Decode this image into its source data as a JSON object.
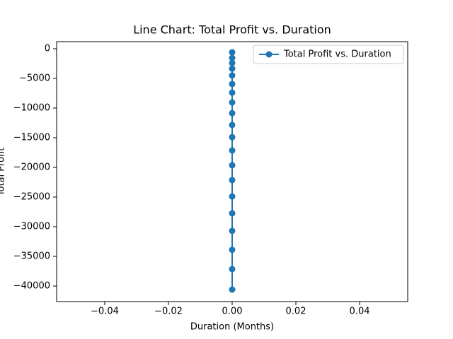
{
  "chart_data": {
    "type": "line",
    "title": "Line Chart: Total Profit vs. Duration",
    "x_label": "Duration (Months)",
    "y_label": "Total Profit",
    "x": [
      0,
      0,
      0,
      0,
      0,
      0,
      0,
      0,
      0,
      0,
      0,
      0,
      0,
      0,
      0,
      0,
      0,
      0,
      0,
      0
    ],
    "series": [
      {
        "name": "Total Profit vs. Duration",
        "color": "#1f77b4",
        "values": [
          -600,
          -1550,
          -2400,
          -3350,
          -4500,
          -5950,
          -7400,
          -9050,
          -10850,
          -12850,
          -14900,
          -17150,
          -19650,
          -22150,
          -24900,
          -27750,
          -30700,
          -33900,
          -37150,
          -40600
        ]
      }
    ],
    "xlim": [
      -0.0551,
      0.0551
    ],
    "xticks": [
      {
        "value": -0.04,
        "label": "−0.04"
      },
      {
        "value": -0.02,
        "label": "−0.02"
      },
      {
        "value": 0,
        "label": "0.00"
      },
      {
        "value": 0.02,
        "label": "0.02"
      },
      {
        "value": 0.04,
        "label": "0.04"
      }
    ],
    "ylim": [
      -42620,
      1190
    ],
    "yticks": [
      0,
      {
        "value": -5000,
        "label": "−5000"
      },
      {
        "value": -10000,
        "label": "−10000"
      },
      {
        "value": -15000,
        "label": "−15000"
      },
      {
        "value": -20000,
        "label": "−20000"
      },
      {
        "value": -25000,
        "label": "−25000"
      },
      {
        "value": -30000,
        "label": "−30000"
      },
      {
        "value": -35000,
        "label": "−35000"
      },
      {
        "value": -40000,
        "label": "−40000"
      }
    ],
    "grid": false,
    "legend": "upper right"
  }
}
